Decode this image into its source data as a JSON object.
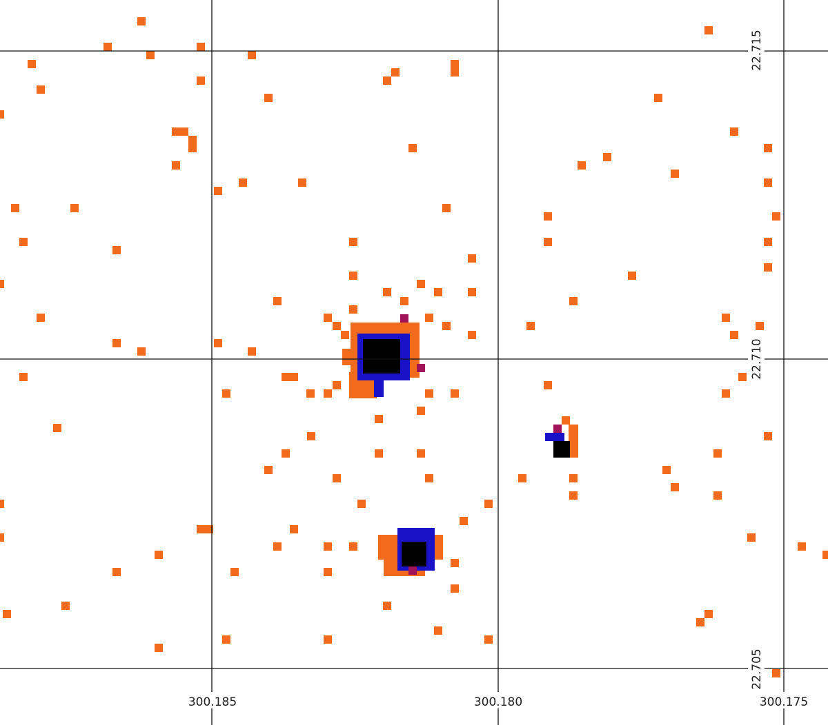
{
  "axes": {
    "x_labels": [
      "300.185",
      "300.180",
      "300.175"
    ],
    "y_labels": [
      "22.715",
      "22.710",
      "22.705"
    ]
  }
}
